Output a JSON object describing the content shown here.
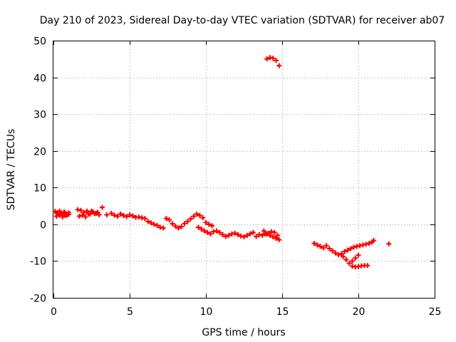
{
  "chart_data": {
    "type": "scatter",
    "title": "Day 210 of 2023, Sidereal Day-to-day VTEC variation (SDTVAR) for receiver ab07",
    "xlabel": "GPS time / hours",
    "ylabel": "SDTVAR / TECUs",
    "xlim": [
      0,
      25
    ],
    "ylim": [
      -20,
      50
    ],
    "xticks": [
      0,
      5,
      10,
      15,
      20,
      25
    ],
    "xtick_labels": [
      "0",
      "5",
      "10",
      "15",
      "20",
      "25"
    ],
    "yticks": [
      -20,
      -10,
      0,
      10,
      20,
      30,
      40,
      50
    ],
    "ytick_labels": [
      "-20",
      "-10",
      "0",
      "10",
      "20",
      "30",
      "40",
      "50"
    ],
    "grid": true,
    "marker": "+",
    "color": "#ff0000",
    "series": [
      {
        "name": "SDTVAR",
        "x": [
          0.1,
          0.2,
          0.3,
          0.4,
          0.5,
          0.6,
          0.7,
          0.8,
          0.9,
          1.0,
          0.2,
          0.4,
          0.6,
          0.8,
          1.0,
          1.6,
          1.8,
          2.0,
          2.2,
          2.4,
          2.6,
          2.8,
          3.0,
          1.7,
          1.9,
          2.1,
          2.3,
          2.5,
          2.7,
          2.9,
          3.2,
          3.5,
          3.8,
          4.0,
          4.2,
          4.4,
          4.6,
          4.8,
          5.0,
          5.2,
          5.4,
          5.6,
          5.8,
          6.0,
          6.2,
          6.4,
          6.6,
          6.8,
          7.0,
          7.2,
          7.4,
          7.6,
          7.8,
          8.0,
          8.2,
          8.4,
          8.6,
          8.8,
          9.0,
          9.2,
          9.4,
          9.6,
          9.8,
          10.0,
          10.2,
          10.4,
          9.5,
          9.7,
          9.9,
          10.1,
          10.3,
          10.5,
          10.7,
          10.9,
          11.1,
          11.3,
          11.5,
          11.7,
          11.9,
          12.1,
          12.3,
          12.5,
          12.7,
          12.9,
          13.1,
          13.3,
          13.5,
          13.7,
          13.9,
          14.1,
          14.3,
          14.5,
          14.7,
          14.0,
          14.2,
          14.4,
          14.6,
          14.8,
          13.8,
          14.0,
          14.2,
          14.4,
          14.6,
          14.8,
          17.1,
          17.3,
          17.5,
          17.7,
          17.9,
          18.1,
          18.3,
          18.5,
          18.7,
          18.9,
          19.1,
          19.3,
          19.5,
          19.7,
          19.9,
          20.1,
          20.3,
          20.5,
          20.7,
          20.9,
          21.0,
          19.0,
          19.2,
          19.4,
          19.6,
          19.8,
          20.0,
          19.6,
          19.8,
          20.0,
          20.2,
          20.4,
          20.6,
          22.0
        ],
        "y": [
          3.5,
          3.2,
          3.0,
          3.6,
          3.1,
          2.8,
          3.4,
          3.0,
          2.6,
          3.2,
          2.2,
          2.5,
          2.0,
          2.4,
          2.7,
          4.0,
          3.8,
          3.2,
          3.6,
          2.8,
          3.4,
          3.0,
          2.6,
          2.2,
          2.5,
          2.0,
          2.8,
          3.6,
          2.9,
          3.3,
          4.6,
          2.6,
          3.0,
          2.5,
          2.2,
          2.8,
          2.4,
          2.1,
          2.6,
          2.3,
          1.9,
          2.0,
          1.8,
          1.6,
          0.8,
          0.4,
          0.0,
          -0.3,
          -0.8,
          -1.0,
          1.6,
          1.2,
          0.2,
          -0.5,
          -1.0,
          -0.6,
          0.2,
          0.8,
          1.5,
          2.2,
          2.8,
          2.4,
          1.8,
          0.5,
          0.0,
          -0.4,
          -0.8,
          -1.3,
          -1.8,
          -2.2,
          -2.6,
          -2.0,
          -1.8,
          -2.2,
          -2.8,
          -3.3,
          -3.0,
          -2.6,
          -2.4,
          -2.8,
          -3.2,
          -3.4,
          -3.0,
          -2.6,
          -2.2,
          -3.3,
          -2.8,
          -3.0,
          -2.6,
          -2.4,
          -2.0,
          -2.2,
          -3.0,
          45.0,
          45.4,
          45.2,
          44.6,
          43.2,
          -1.8,
          -2.6,
          -3.0,
          -3.4,
          -3.8,
          -4.2,
          -5.2,
          -5.6,
          -6.0,
          -6.4,
          -5.8,
          -6.6,
          -7.2,
          -7.8,
          -8.3,
          -8.0,
          -7.4,
          -7.0,
          -6.6,
          -6.2,
          -6.0,
          -5.8,
          -5.6,
          -5.4,
          -5.2,
          -4.8,
          -4.4,
          -8.8,
          -9.6,
          -10.6,
          -10.0,
          -9.2,
          -8.4,
          -11.4,
          -11.6,
          -11.5,
          -11.3,
          -11.2,
          -11.2,
          -5.3
        ]
      }
    ]
  }
}
